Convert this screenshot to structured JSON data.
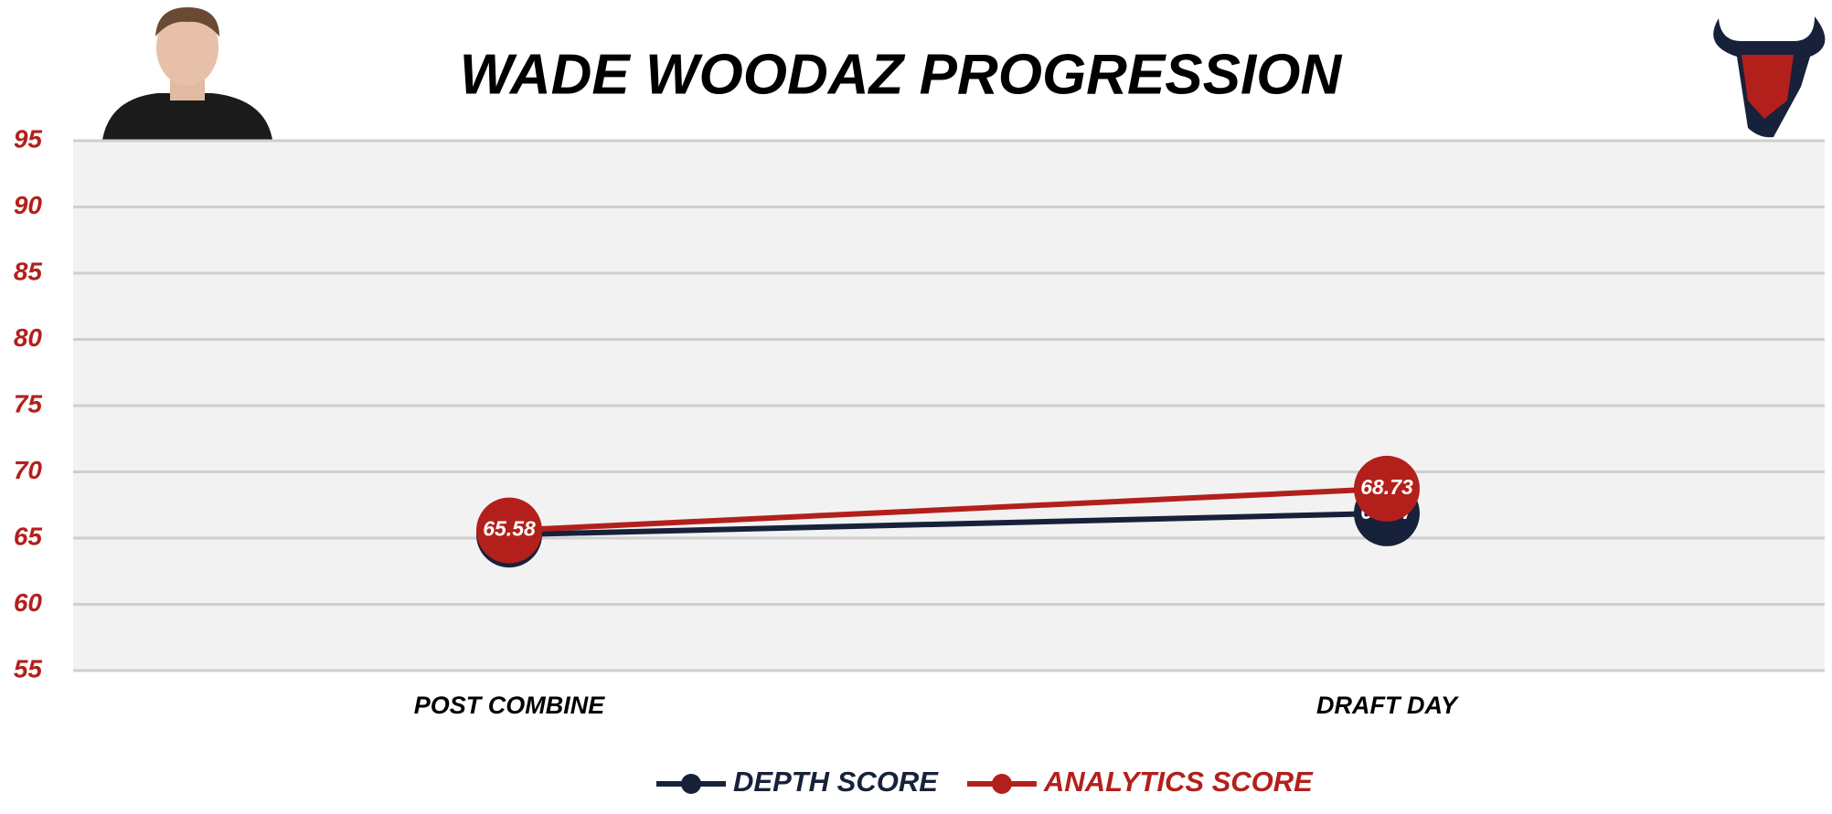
{
  "chart_data": {
    "type": "line",
    "title": "WADE WOODAZ PROGRESSION",
    "categories": [
      "POST COMBINE",
      "DRAFT DAY"
    ],
    "series": [
      {
        "name": "DEPTH SCORE",
        "color": "#17213a",
        "values": [
          65.26,
          66.87
        ]
      },
      {
        "name": "ANALYTICS SCORE",
        "color": "#b3201c",
        "values": [
          65.58,
          68.73
        ]
      }
    ],
    "ylim": [
      55,
      95
    ],
    "yticks": [
      55,
      60,
      65,
      70,
      75,
      80,
      85,
      90,
      95
    ],
    "grid": true
  }
}
